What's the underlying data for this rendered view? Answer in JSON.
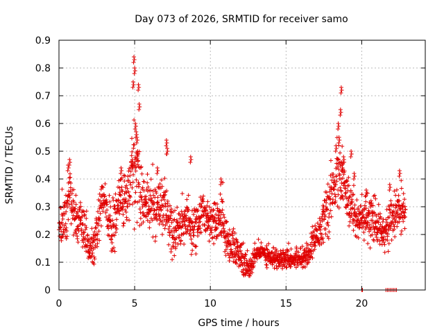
{
  "chart_data": {
    "type": "scatter",
    "title": "Day 073 of 2026, SRMTID for receiver samo",
    "xlabel": "GPS time / hours",
    "ylabel": "SRMTID / TECUs",
    "xlim": [
      0,
      24.2
    ],
    "ylim": [
      0,
      0.9
    ],
    "xticks": [
      0,
      5,
      10,
      15,
      20
    ],
    "yticks": [
      0,
      0.1,
      0.2,
      0.3,
      0.4,
      0.5,
      0.6,
      0.7,
      0.8,
      0.9
    ],
    "xtick_labels": [
      "0",
      "5",
      "10",
      "15",
      "20"
    ],
    "ytick_labels": [
      "0",
      "0.1",
      "0.2",
      "0.3",
      "0.4",
      "0.5",
      "0.6",
      "0.7",
      "0.8",
      "0.9"
    ],
    "grid": true,
    "marker": "+",
    "color": "#e00000",
    "series": [
      {
        "name": "SRMTID",
        "profile": [
          [
            0.0,
            0.24,
            0.06
          ],
          [
            0.5,
            0.27,
            0.08
          ],
          [
            0.7,
            0.38,
            0.07
          ],
          [
            1.0,
            0.27,
            0.07
          ],
          [
            1.5,
            0.23,
            0.06
          ],
          [
            2.0,
            0.15,
            0.05
          ],
          [
            2.3,
            0.14,
            0.06
          ],
          [
            2.6,
            0.25,
            0.07
          ],
          [
            3.0,
            0.33,
            0.07
          ],
          [
            3.5,
            0.2,
            0.08
          ],
          [
            4.0,
            0.33,
            0.09
          ],
          [
            4.5,
            0.32,
            0.08
          ],
          [
            4.9,
            0.45,
            0.12
          ],
          [
            5.2,
            0.42,
            0.12
          ],
          [
            5.5,
            0.33,
            0.08
          ],
          [
            6.0,
            0.3,
            0.08
          ],
          [
            6.5,
            0.3,
            0.08
          ],
          [
            7.0,
            0.32,
            0.09
          ],
          [
            7.5,
            0.2,
            0.07
          ],
          [
            8.0,
            0.24,
            0.07
          ],
          [
            8.5,
            0.25,
            0.08
          ],
          [
            9.0,
            0.22,
            0.07
          ],
          [
            9.5,
            0.28,
            0.06
          ],
          [
            10.0,
            0.25,
            0.06
          ],
          [
            10.5,
            0.26,
            0.07
          ],
          [
            10.8,
            0.27,
            0.08
          ],
          [
            11.0,
            0.18,
            0.05
          ],
          [
            11.5,
            0.16,
            0.05
          ],
          [
            12.0,
            0.12,
            0.05
          ],
          [
            12.3,
            0.1,
            0.05
          ],
          [
            12.6,
            0.07,
            0.03
          ],
          [
            13.0,
            0.13,
            0.03
          ],
          [
            13.5,
            0.14,
            0.03
          ],
          [
            14.0,
            0.12,
            0.03
          ],
          [
            14.5,
            0.11,
            0.03
          ],
          [
            15.0,
            0.12,
            0.03
          ],
          [
            15.5,
            0.11,
            0.03
          ],
          [
            16.0,
            0.12,
            0.03
          ],
          [
            16.5,
            0.13,
            0.03
          ],
          [
            17.0,
            0.2,
            0.05
          ],
          [
            17.5,
            0.25,
            0.06
          ],
          [
            18.0,
            0.33,
            0.08
          ],
          [
            18.4,
            0.42,
            0.09
          ],
          [
            18.7,
            0.4,
            0.1
          ],
          [
            19.0,
            0.33,
            0.08
          ],
          [
            19.5,
            0.28,
            0.07
          ],
          [
            20.0,
            0.25,
            0.07
          ],
          [
            20.5,
            0.25,
            0.07
          ],
          [
            21.0,
            0.23,
            0.06
          ],
          [
            21.5,
            0.22,
            0.05
          ],
          [
            22.0,
            0.25,
            0.06
          ],
          [
            22.5,
            0.3,
            0.07
          ],
          [
            22.8,
            0.25,
            0.06
          ]
        ],
        "peaks": [
          [
            4.95,
            0.84
          ],
          [
            4.9,
            0.75
          ],
          [
            5.0,
            0.8
          ],
          [
            5.25,
            0.74
          ],
          [
            5.3,
            0.67
          ],
          [
            5.05,
            0.6
          ],
          [
            5.15,
            0.55
          ],
          [
            5.2,
            0.5
          ],
          [
            4.85,
            0.47
          ],
          [
            5.1,
            0.57
          ],
          [
            18.65,
            0.73
          ],
          [
            18.6,
            0.65
          ],
          [
            18.45,
            0.6
          ],
          [
            18.5,
            0.55
          ],
          [
            18.3,
            0.52
          ],
          [
            18.8,
            0.48
          ],
          [
            19.3,
            0.5
          ],
          [
            18.7,
            0.45
          ],
          [
            0.6,
            0.45
          ],
          [
            0.7,
            0.47
          ],
          [
            7.1,
            0.54
          ],
          [
            7.15,
            0.51
          ],
          [
            8.7,
            0.48
          ],
          [
            4.1,
            0.44
          ],
          [
            6.5,
            0.44
          ],
          [
            10.7,
            0.4
          ],
          [
            22.5,
            0.43
          ],
          [
            21.85,
            0.38
          ],
          [
            20.3,
            0.36
          ],
          [
            19.5,
            0.42
          ]
        ],
        "zero_points": [
          20.0,
          20.05,
          21.6,
          21.7,
          21.8,
          21.9,
          22.0,
          22.1,
          22.2,
          22.3
        ],
        "x_end": 22.9,
        "step": 0.012
      }
    ]
  }
}
